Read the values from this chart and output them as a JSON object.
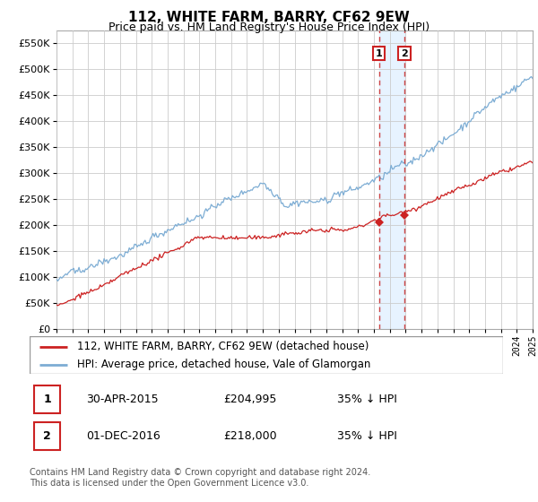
{
  "title": "112, WHITE FARM, BARRY, CF62 9EW",
  "subtitle": "Price paid vs. HM Land Registry's House Price Index (HPI)",
  "legend_line1": "112, WHITE FARM, BARRY, CF62 9EW (detached house)",
  "legend_line2": "HPI: Average price, detached house, Vale of Glamorgan",
  "footnote": "Contains HM Land Registry data © Crown copyright and database right 2024.\nThis data is licensed under the Open Government Licence v3.0.",
  "event1_date": "30-APR-2015",
  "event1_price": "£204,995",
  "event1_pct": "35% ↓ HPI",
  "event2_date": "01-DEC-2016",
  "event2_price": "£218,000",
  "event2_pct": "35% ↓ HPI",
  "hpi_color": "#7dadd4",
  "sale_color": "#cc2222",
  "event_vline_color": "#cc4444",
  "shade_color": "#ddeeff",
  "background_color": "#ffffff",
  "grid_color": "#cccccc",
  "ylim": [
    0,
    575000
  ],
  "yticks": [
    0,
    50000,
    100000,
    150000,
    200000,
    250000,
    300000,
    350000,
    400000,
    450000,
    500000,
    550000
  ],
  "start_year": 1995,
  "end_year": 2025,
  "event1_year": 2015.33,
  "event1_price_val": 204995,
  "event2_year": 2016.917,
  "event2_price_val": 218000
}
